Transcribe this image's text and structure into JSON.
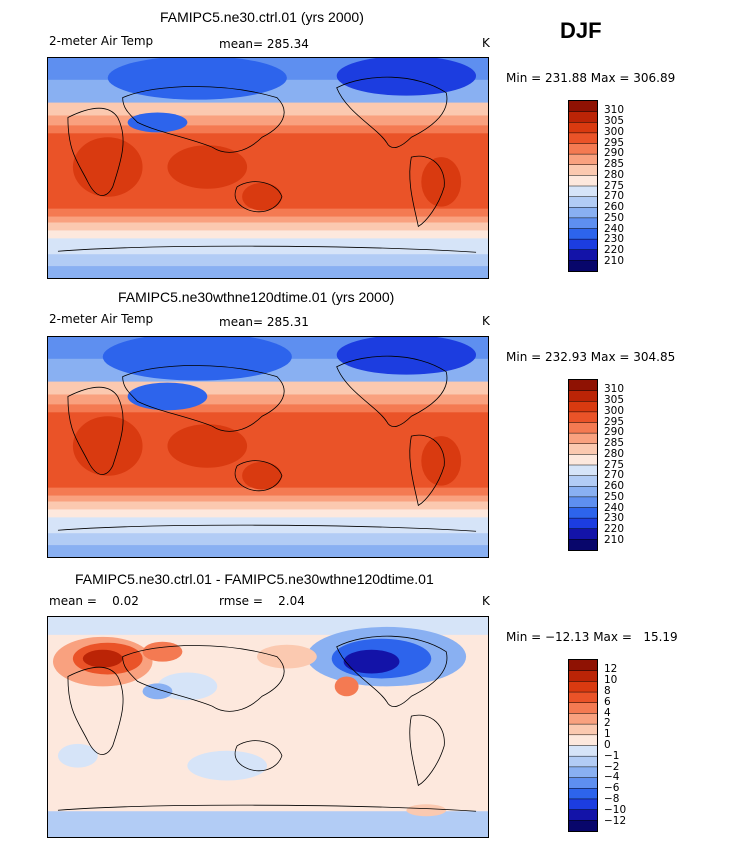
{
  "season": "DJF",
  "colors": {
    "abs_scale": [
      "#08066b",
      "#1313a8",
      "#1c3de0",
      "#2d64ec",
      "#5e8ff0",
      "#89b0f2",
      "#b2ccf5",
      "#d6e4f8",
      "#fde8dd",
      "#fbc9b0",
      "#f9a17f",
      "#f47a52",
      "#ea5328",
      "#d93a10",
      "#bb2406",
      "#8f1203"
    ],
    "diff_scale": [
      "#08066b",
      "#1313a8",
      "#1c3de0",
      "#2d64ec",
      "#5e8ff0",
      "#89b0f2",
      "#b2ccf5",
      "#d6e4f8",
      "#fde8dd",
      "#fbc9b0",
      "#f9a17f",
      "#f47a52",
      "#ea5328",
      "#d93a10",
      "#bb2406",
      "#8f1203"
    ]
  },
  "chart_data": [
    {
      "type": "heatmap",
      "title": "FAMIPC5.ne30.ctrl.01 (yrs 2000)",
      "left_label": "2-meter Air Temp",
      "stat_text": "mean= 285.34",
      "units": "K",
      "minmax_text": "Min = 231.88 Max = 306.89",
      "min": 231.88,
      "max": 306.89,
      "mean": 285.34,
      "colorbar_levels": [
        "310",
        "305",
        "300",
        "295",
        "290",
        "285",
        "280",
        "275",
        "270",
        "260",
        "250",
        "240",
        "230",
        "220",
        "210"
      ]
    },
    {
      "type": "heatmap",
      "title": "FAMIPC5.ne30wthne120dtime.01 (yrs 2000)",
      "left_label": "2-meter Air Temp",
      "stat_text": "mean= 285.31",
      "units": "K",
      "minmax_text": "Min = 232.93 Max = 304.85",
      "min": 232.93,
      "max": 304.85,
      "mean": 285.31,
      "colorbar_levels": [
        "310",
        "305",
        "300",
        "295",
        "290",
        "285",
        "280",
        "275",
        "270",
        "260",
        "250",
        "240",
        "230",
        "220",
        "210"
      ]
    },
    {
      "type": "heatmap",
      "title": "FAMIPC5.ne30.ctrl.01 - FAMIPC5.ne30wthne120dtime.01",
      "left_label": "mean =    0.02",
      "stat_text": "rmse =    2.04",
      "units": "K",
      "minmax_text": "Min = −12.13 Max =   15.19",
      "min": -12.13,
      "max": 15.19,
      "mean": 0.02,
      "rmse": 2.04,
      "colorbar_levels": [
        "12",
        "10",
        "8",
        "6",
        "4",
        "2",
        "1",
        "0",
        "−1",
        "−2",
        "−4",
        "−6",
        "−8",
        "−10",
        "−12"
      ]
    }
  ]
}
